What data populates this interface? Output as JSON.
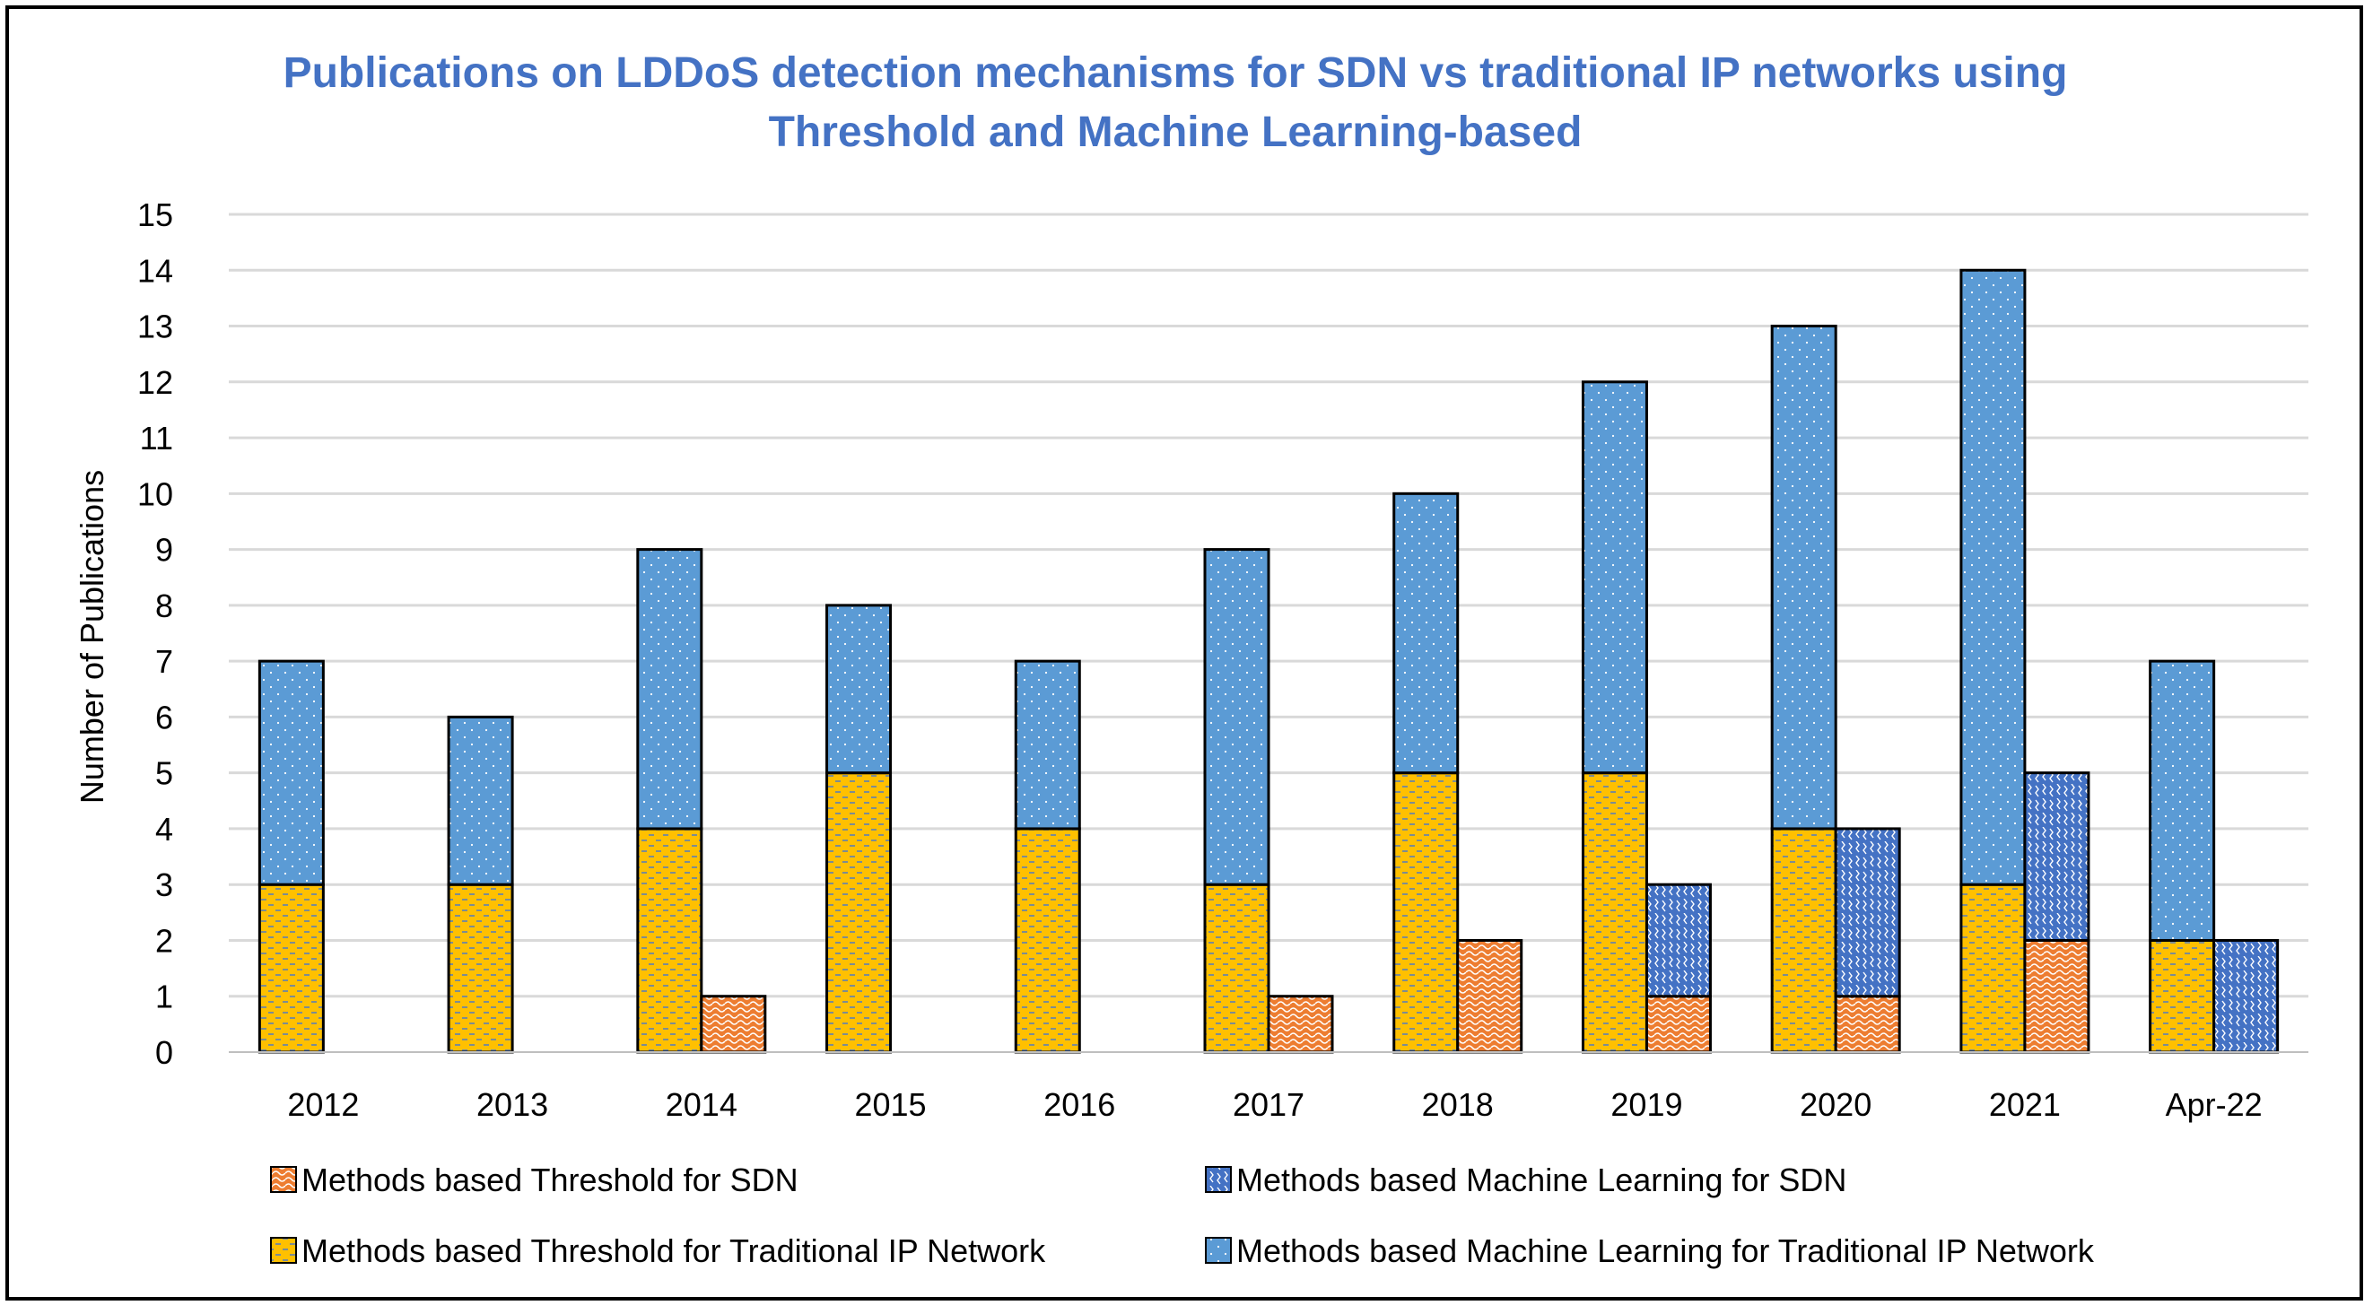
{
  "chart_data": {
    "type": "bar",
    "title": [
      "Publications on LDDoS detection mechanisms for SDN vs traditional IP networks using",
      "Threshold and Machine Learning-based"
    ],
    "xlabel": "",
    "ylabel": "Number of Publications",
    "ylim": [
      0,
      15
    ],
    "yticks": [
      "0",
      "1",
      "2",
      "3",
      "4",
      "5",
      "6",
      "7",
      "8",
      "9",
      "10",
      "11",
      "12",
      "13",
      "14",
      "15"
    ],
    "grid": true,
    "legend_position": "bottom",
    "categories": [
      "2012",
      "2013",
      "2014",
      "2015",
      "2016",
      "2017",
      "2018",
      "2019",
      "2020",
      "2021",
      "Apr-22"
    ],
    "stacks": [
      {
        "name": "Traditional IP Network",
        "series": [
          "Methods based Threshold for Traditional IP Network",
          "Methods based Machine Learning for Traditional IP Network"
        ]
      },
      {
        "name": "SDN",
        "series": [
          "Methods based Threshold for SDN",
          "Methods based Machine Learning for SDN"
        ]
      }
    ],
    "series": [
      {
        "name": "Methods based Threshold for SDN",
        "stack": "SDN",
        "color": "#ED7D31",
        "values": [
          0,
          0,
          1,
          0,
          0,
          1,
          2,
          1,
          1,
          2,
          0
        ]
      },
      {
        "name": "Methods based Machine Learning for SDN",
        "stack": "SDN",
        "color": "#4472C4",
        "values": [
          0,
          0,
          0,
          0,
          0,
          0,
          0,
          2,
          3,
          3,
          2
        ]
      },
      {
        "name": "Methods based Threshold for Traditional IP Network",
        "stack": "Traditional IP Network",
        "color": "#FFC000",
        "values": [
          3,
          3,
          4,
          5,
          4,
          3,
          5,
          5,
          4,
          3,
          2
        ]
      },
      {
        "name": "Methods based Machine Learning for Traditional IP Network",
        "stack": "Traditional IP Network",
        "color": "#5B9BD5",
        "values": [
          4,
          3,
          5,
          3,
          3,
          6,
          5,
          7,
          9,
          11,
          5
        ]
      }
    ]
  }
}
